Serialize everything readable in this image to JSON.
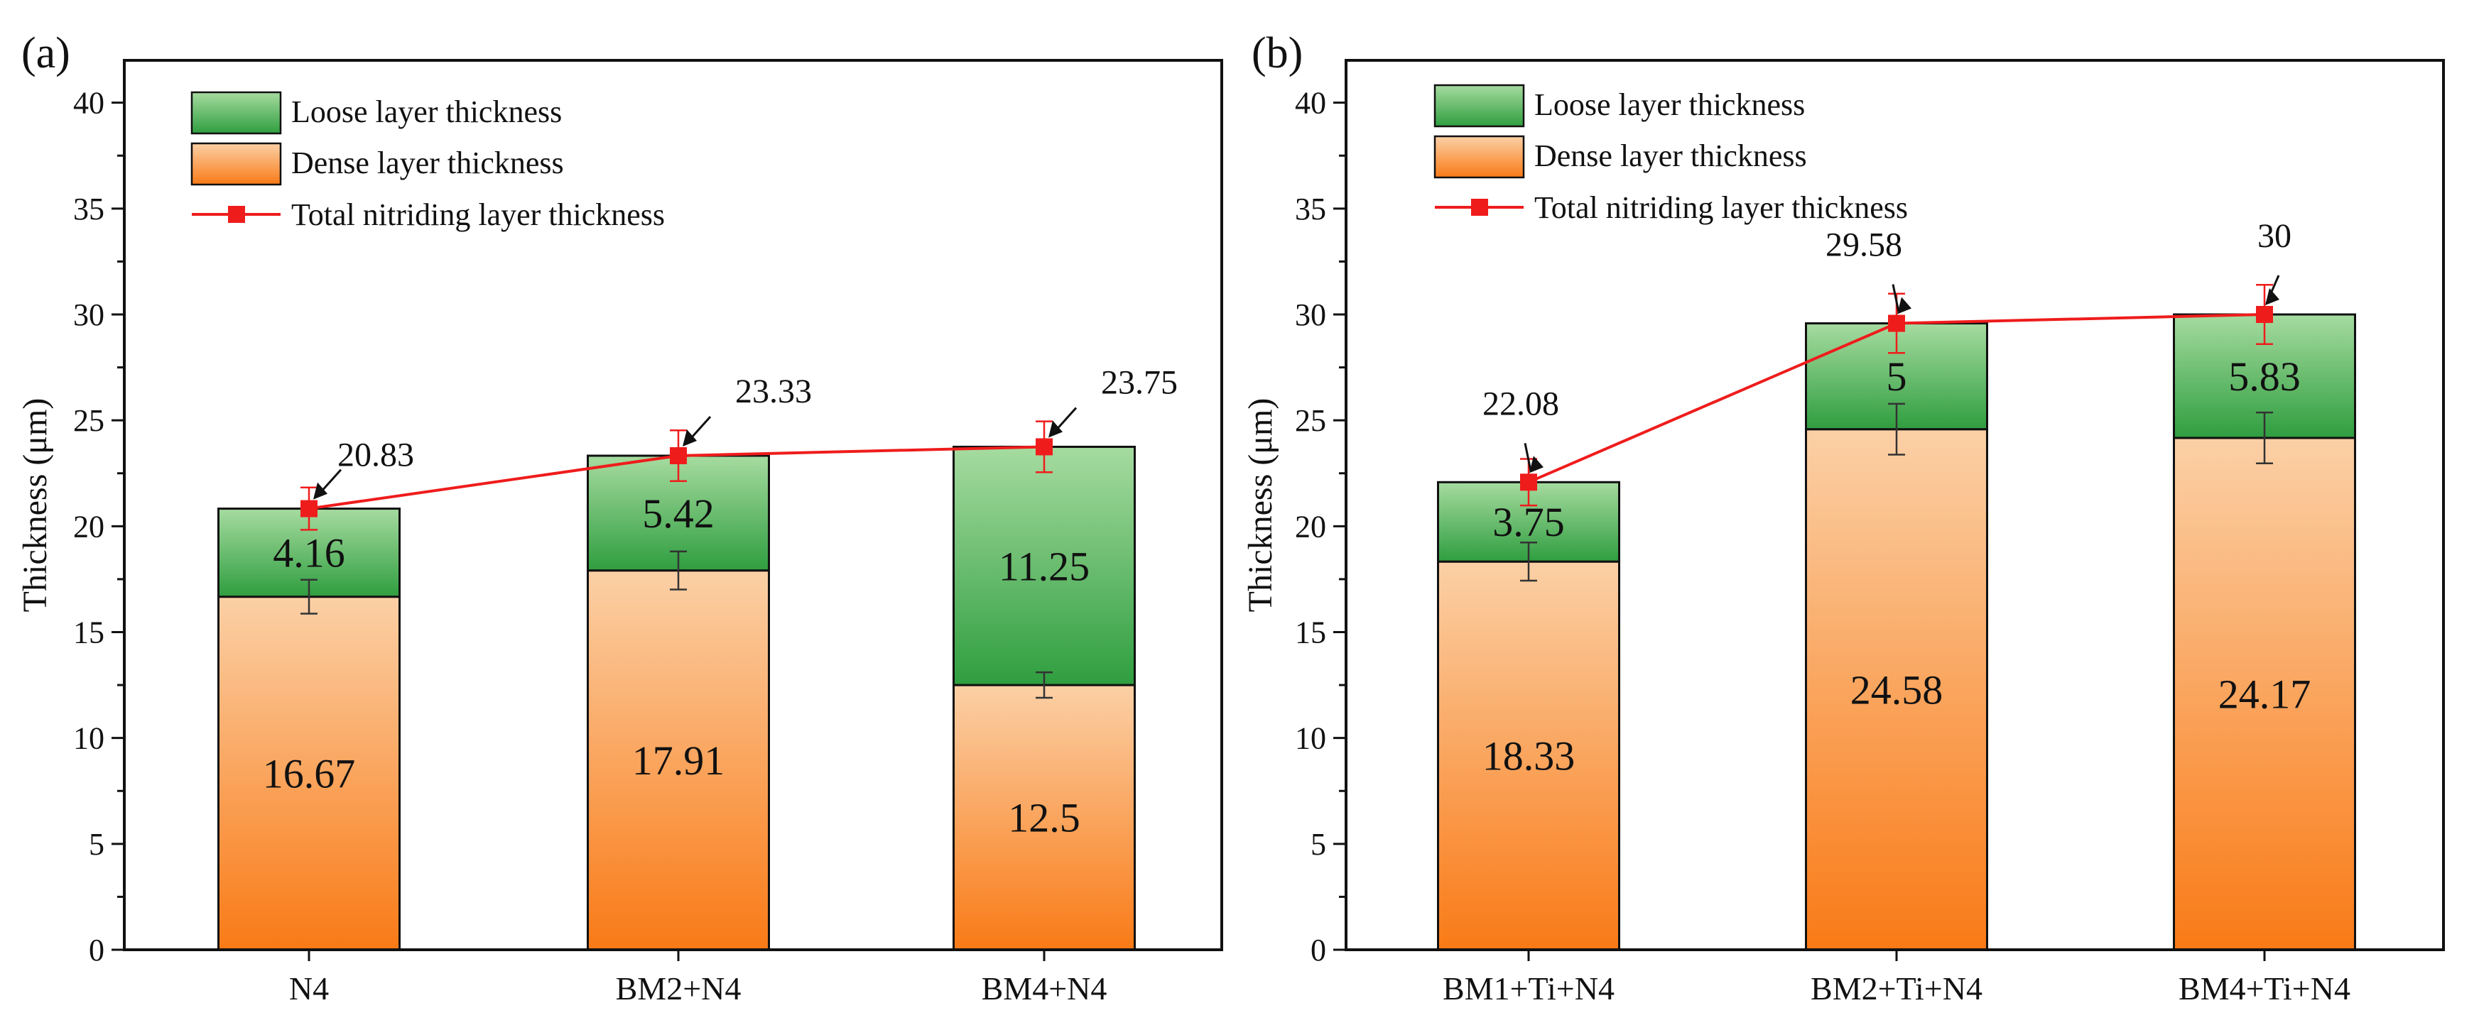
{
  "chart_data": [
    {
      "panel_label": "(a)",
      "type": "bar",
      "stacked": true,
      "categories": [
        "N4",
        "BM2+N4",
        "BM4+N4"
      ],
      "series": [
        {
          "name": "Dense layer thickness",
          "values": [
            16.67,
            17.91,
            12.5
          ],
          "errors": [
            0.8,
            0.9,
            0.6
          ],
          "color_top": "#fbd0a6",
          "color_bottom": "#f97a16",
          "labels": [
            "16.67",
            "17.91",
            "12.5"
          ]
        },
        {
          "name": "Loose layer thickness",
          "values": [
            4.16,
            5.42,
            11.25
          ],
          "color_top": "#a6dba0",
          "color_bottom": "#2f9e3f",
          "labels": [
            "4.16",
            "5.42",
            "11.25"
          ]
        }
      ],
      "line": {
        "name": "Total nitriding layer thickness",
        "values": [
          20.83,
          23.33,
          23.75
        ],
        "errors": [
          1.0,
          1.2,
          1.2
        ],
        "color": "#ef1c1c",
        "labels": [
          "20.83",
          "23.33",
          "23.75"
        ]
      },
      "ylabel": "Thickness (μm)",
      "xlabel": "",
      "ylim": [
        0,
        42
      ],
      "yticks": [
        "0",
        "5",
        "10",
        "15",
        "20",
        "25",
        "30",
        "35",
        "40"
      ],
      "legend": "top-left"
    },
    {
      "panel_label": "(b)",
      "type": "bar",
      "stacked": true,
      "categories": [
        "BM1+Ti+N4",
        "BM2+Ti+N4",
        "BM4+Ti+N4"
      ],
      "series": [
        {
          "name": "Dense layer thickness",
          "values": [
            18.33,
            24.58,
            24.17
          ],
          "errors": [
            0.9,
            1.2,
            1.2
          ],
          "color_top": "#fbd0a6",
          "color_bottom": "#f97a16",
          "labels": [
            "18.33",
            "24.58",
            "24.17"
          ]
        },
        {
          "name": "Loose layer thickness",
          "values": [
            3.75,
            5,
            5.83
          ],
          "color_top": "#a6dba0",
          "color_bottom": "#2f9e3f",
          "labels": [
            "3.75",
            "5",
            "5.83"
          ]
        }
      ],
      "line": {
        "name": "Total nitriding layer thickness",
        "values": [
          22.08,
          29.58,
          30
        ],
        "errors": [
          1.1,
          1.4,
          1.4
        ],
        "color": "#ef1c1c",
        "labels": [
          "22.08",
          "29.58",
          "30"
        ]
      },
      "ylabel": "Thickness (μm)",
      "xlabel": "",
      "ylim": [
        0,
        42
      ],
      "yticks": [
        "0",
        "5",
        "10",
        "15",
        "20",
        "25",
        "30",
        "35",
        "40"
      ],
      "legend": "top-left"
    }
  ]
}
